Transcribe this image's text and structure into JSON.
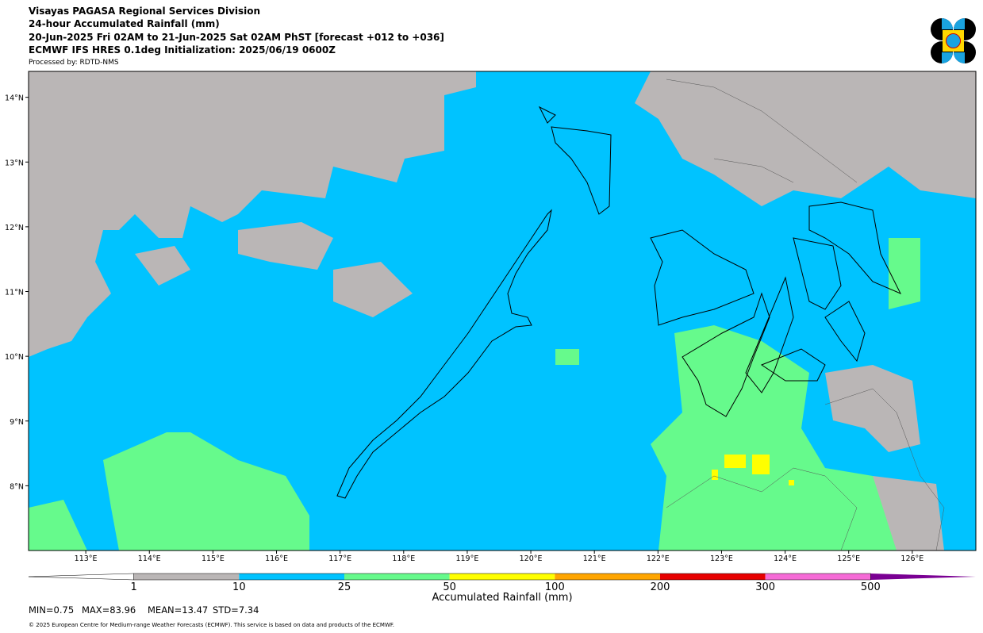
{
  "header": {
    "lines": [
      "Visayas PAGASA Regional Services Division",
      "24-hour Accumulated Rainfall (mm)",
      "20-Jun-2025 Fri 02AM to 21-Jun-2025 Sat 02AM PhST [forecast +012 to +036]",
      "ECMWF IFS HRES 0.1deg Initialization: 2025/06/19 0600Z"
    ],
    "processed_by": "Processed by: RDTD-NMS"
  },
  "map": {
    "xlim": [
      112.1,
      127.0
    ],
    "ylim": [
      7.0,
      14.4
    ],
    "xticks": [
      {
        "value": 113,
        "label": "113°E"
      },
      {
        "value": 114,
        "label": "114°E"
      },
      {
        "value": 115,
        "label": "115°E"
      },
      {
        "value": 116,
        "label": "116°E"
      },
      {
        "value": 117,
        "label": "117°E"
      },
      {
        "value": 118,
        "label": "118°E"
      },
      {
        "value": 119,
        "label": "119°E"
      },
      {
        "value": 120,
        "label": "120°E"
      },
      {
        "value": 121,
        "label": "121°E"
      },
      {
        "value": 122,
        "label": "122°E"
      },
      {
        "value": 123,
        "label": "123°E"
      },
      {
        "value": 124,
        "label": "124°E"
      },
      {
        "value": 125,
        "label": "125°E"
      },
      {
        "value": 126,
        "label": "126°E"
      }
    ],
    "yticks": [
      {
        "value": 8,
        "label": "8°N"
      },
      {
        "value": 9,
        "label": "9°N"
      },
      {
        "value": 10,
        "label": "10°N"
      },
      {
        "value": 11,
        "label": "11°N"
      },
      {
        "value": 12,
        "label": "12°N"
      },
      {
        "value": 13,
        "label": "13°N"
      },
      {
        "value": 14,
        "label": "14°N"
      }
    ]
  },
  "colorbar": {
    "label": "Accumulated Rainfall (mm)",
    "ticks": [
      1,
      10,
      25,
      50,
      100,
      200,
      300,
      500
    ],
    "colors": [
      "#bab6b6",
      "#00c3ff",
      "#66fa8c",
      "#ffff00",
      "#ffa500",
      "#e60000",
      "#f56bd6"
    ],
    "under_color": "#ffffff",
    "over_color": "#7a0093"
  },
  "stats": [
    "MIN=0.75",
    "MAX=83.96",
    "MEAN=13.47",
    "STD=7.34"
  ],
  "footer": "© 2025 European Centre for Medium-range Weather Forecasts (ECMWF). This service is based on data and products of the ECMWF."
}
